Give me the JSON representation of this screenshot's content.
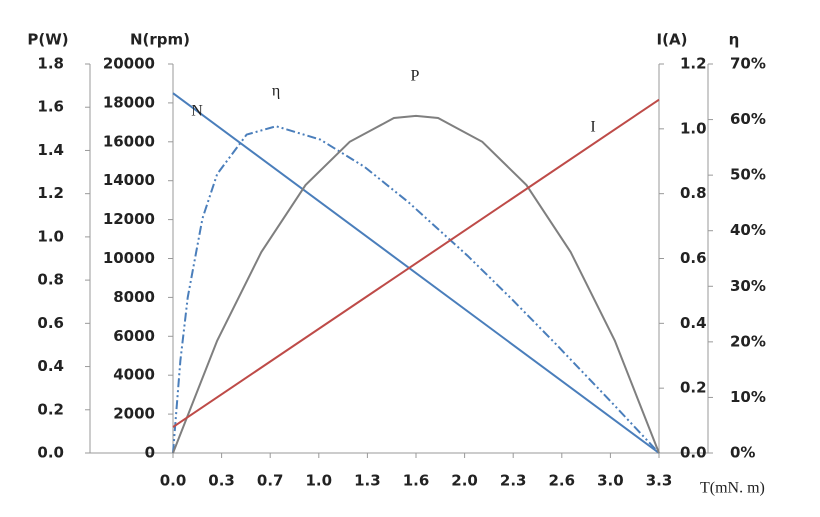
{
  "chart_data": {
    "type": "line",
    "x_title": "T(mN. m)",
    "xlim": [
      0,
      3.3
    ],
    "xticks": [
      {
        "value": 0,
        "label": "0.0"
      },
      {
        "value": 0.33,
        "label": "0.3"
      },
      {
        "value": 0.66,
        "label": "0.7"
      },
      {
        "value": 0.99,
        "label": "1.0"
      },
      {
        "value": 1.32,
        "label": "1.3"
      },
      {
        "value": 1.65,
        "label": "1.6"
      },
      {
        "value": 1.98,
        "label": "2.0"
      },
      {
        "value": 2.31,
        "label": "2.3"
      },
      {
        "value": 2.64,
        "label": "2.6"
      },
      {
        "value": 2.97,
        "label": "3.0"
      },
      {
        "value": 3.3,
        "label": "3.3"
      }
    ],
    "y_axes": [
      {
        "title": "P(W)",
        "lim": [
          0,
          1.8
        ],
        "ticks": [
          {
            "value": 0,
            "label": "0.0"
          },
          {
            "value": 0.2,
            "label": "0.2"
          },
          {
            "value": 0.4,
            "label": "0.4"
          },
          {
            "value": 0.6,
            "label": "0.6"
          },
          {
            "value": 0.8,
            "label": "0.8"
          },
          {
            "value": 1,
            "label": "1.0"
          },
          {
            "value": 1.2,
            "label": "1.2"
          },
          {
            "value": 1.4,
            "label": "1.4"
          },
          {
            "value": 1.6,
            "label": "1.6"
          },
          {
            "value": 1.8,
            "label": "1.8"
          }
        ]
      },
      {
        "title": "N(rpm)",
        "lim": [
          0,
          20000
        ],
        "ticks": [
          0,
          2000,
          4000,
          6000,
          8000,
          10000,
          12000,
          14000,
          16000,
          18000,
          20000
        ]
      },
      {
        "title": "I(A)",
        "lim": [
          0,
          1.2
        ],
        "ticks": [
          {
            "value": 0,
            "label": "0.0"
          },
          {
            "value": 0.2,
            "label": "0.2"
          },
          {
            "value": 0.4,
            "label": "0.4"
          },
          {
            "value": 0.6,
            "label": "0.6"
          },
          {
            "value": 0.8,
            "label": "0.8"
          },
          {
            "value": 1,
            "label": "1.0"
          },
          {
            "value": 1.2,
            "label": "1.2"
          }
        ]
      },
      {
        "title": "η",
        "lim": [
          0,
          70
        ],
        "ticks": [
          {
            "value": 0,
            "label": "0%"
          },
          {
            "value": 10,
            "label": "10%"
          },
          {
            "value": 20,
            "label": "20%"
          },
          {
            "value": 30,
            "label": "30%"
          },
          {
            "value": 40,
            "label": "40%"
          },
          {
            "value": 50,
            "label": "50%"
          },
          {
            "value": 60,
            "label": "60%"
          },
          {
            "value": 70,
            "label": "70%"
          }
        ]
      }
    ],
    "series": [
      {
        "name": "N",
        "color": "#4a7ebb",
        "axis": 1,
        "x": [
          0,
          3.3
        ],
        "values": [
          18500,
          0
        ]
      },
      {
        "name": "η",
        "color": "#4a7ebb",
        "axis": 3,
        "dashed": true,
        "x": [
          0,
          0.05,
          0.1,
          0.2,
          0.3,
          0.5,
          0.7,
          1.0,
          1.3,
          1.6,
          2.0,
          2.3,
          2.6,
          3.0,
          3.3
        ],
        "values": [
          0,
          16.6,
          28,
          42.2,
          50.2,
          57.3,
          58.8,
          56.4,
          51.5,
          45.1,
          35.5,
          27.7,
          19.6,
          8.5,
          0
        ]
      },
      {
        "name": "P",
        "color": "#7f7f7f",
        "axis": 0,
        "x": [
          0,
          0.3,
          0.6,
          0.9,
          1.2,
          1.5,
          1.65,
          1.8,
          2.1,
          2.4,
          2.7,
          3.0,
          3.3
        ],
        "values": [
          0,
          0.52,
          0.93,
          1.24,
          1.44,
          1.55,
          1.56,
          1.55,
          1.44,
          1.24,
          0.93,
          0.52,
          0
        ]
      },
      {
        "name": "I",
        "color": "#be4b48",
        "axis": 2,
        "x": [
          0,
          3.3
        ],
        "values": [
          0.08,
          1.09
        ]
      }
    ]
  }
}
